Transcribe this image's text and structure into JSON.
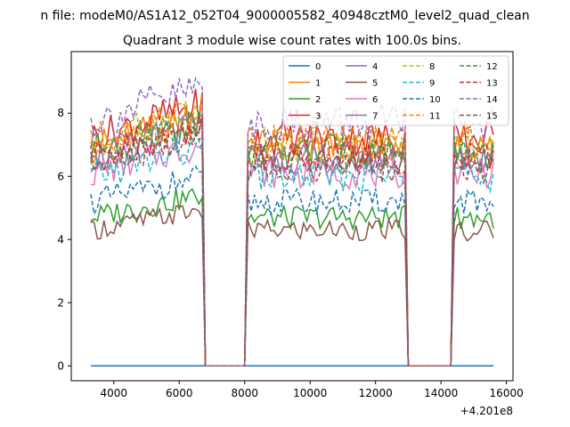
{
  "suptitle": "n file: modeM0/AS1A12_052T04_9000005582_40948cztM0_level2_quad_clean",
  "chart_data": {
    "type": "line",
    "title": "Quadrant 3 module wise count rates with 100.0s bins.",
    "xlabel": "",
    "ylabel": "",
    "offset_text": "+4.201e8",
    "xlim": [
      2700,
      16200
    ],
    "ylim": [
      -0.47,
      9.95
    ],
    "xticks": [
      4000,
      6000,
      8000,
      10000,
      12000,
      14000,
      16000
    ],
    "yticks": [
      0,
      2,
      4,
      6,
      8
    ],
    "x_start": 3300,
    "x_step": 100,
    "grid": false,
    "legend_placement": "top-right",
    "legend_columns": 4,
    "segments_on": [
      [
        3300,
        6700
      ],
      [
        8100,
        12900
      ],
      [
        14400,
        15600
      ]
    ],
    "series": [
      {
        "name": "0",
        "color": "#1f77b4",
        "dash": "solid",
        "level": 0.0
      },
      {
        "name": "1",
        "color": "#ff7f0e",
        "dash": "solid",
        "level": 6.9
      },
      {
        "name": "2",
        "color": "#2ca02c",
        "dash": "solid",
        "level": 4.7
      },
      {
        "name": "3",
        "color": "#d62728",
        "dash": "solid",
        "level": 7.2
      },
      {
        "name": "4",
        "color": "#9467bd",
        "dash": "solid",
        "level": 6.6
      },
      {
        "name": "5",
        "color": "#8c564b",
        "dash": "solid",
        "level": 4.3
      },
      {
        "name": "6",
        "color": "#e377c2",
        "dash": "solid",
        "level": 6.1
      },
      {
        "name": "7",
        "color": "#7f7f7f",
        "dash": "solid",
        "level": 6.6
      },
      {
        "name": "8",
        "color": "#bcbd22",
        "dash": "dashed",
        "level": 7.0
      },
      {
        "name": "9",
        "color": "#17becf",
        "dash": "dashed",
        "level": 6.0
      },
      {
        "name": "10",
        "color": "#1f77b4",
        "dash": "dashed",
        "level": 5.2
      },
      {
        "name": "11",
        "color": "#ff7f0e",
        "dash": "dashed",
        "level": 7.1
      },
      {
        "name": "12",
        "color": "#2ca02c",
        "dash": "dashed",
        "level": 6.8
      },
      {
        "name": "13",
        "color": "#d62728",
        "dash": "dashed",
        "level": 6.6
      },
      {
        "name": "14",
        "color": "#9467bd",
        "dash": "dashed",
        "level": 7.7
      },
      {
        "name": "15",
        "color": "#8c564b",
        "dash": "dashed",
        "level": 6.3
      }
    ]
  }
}
